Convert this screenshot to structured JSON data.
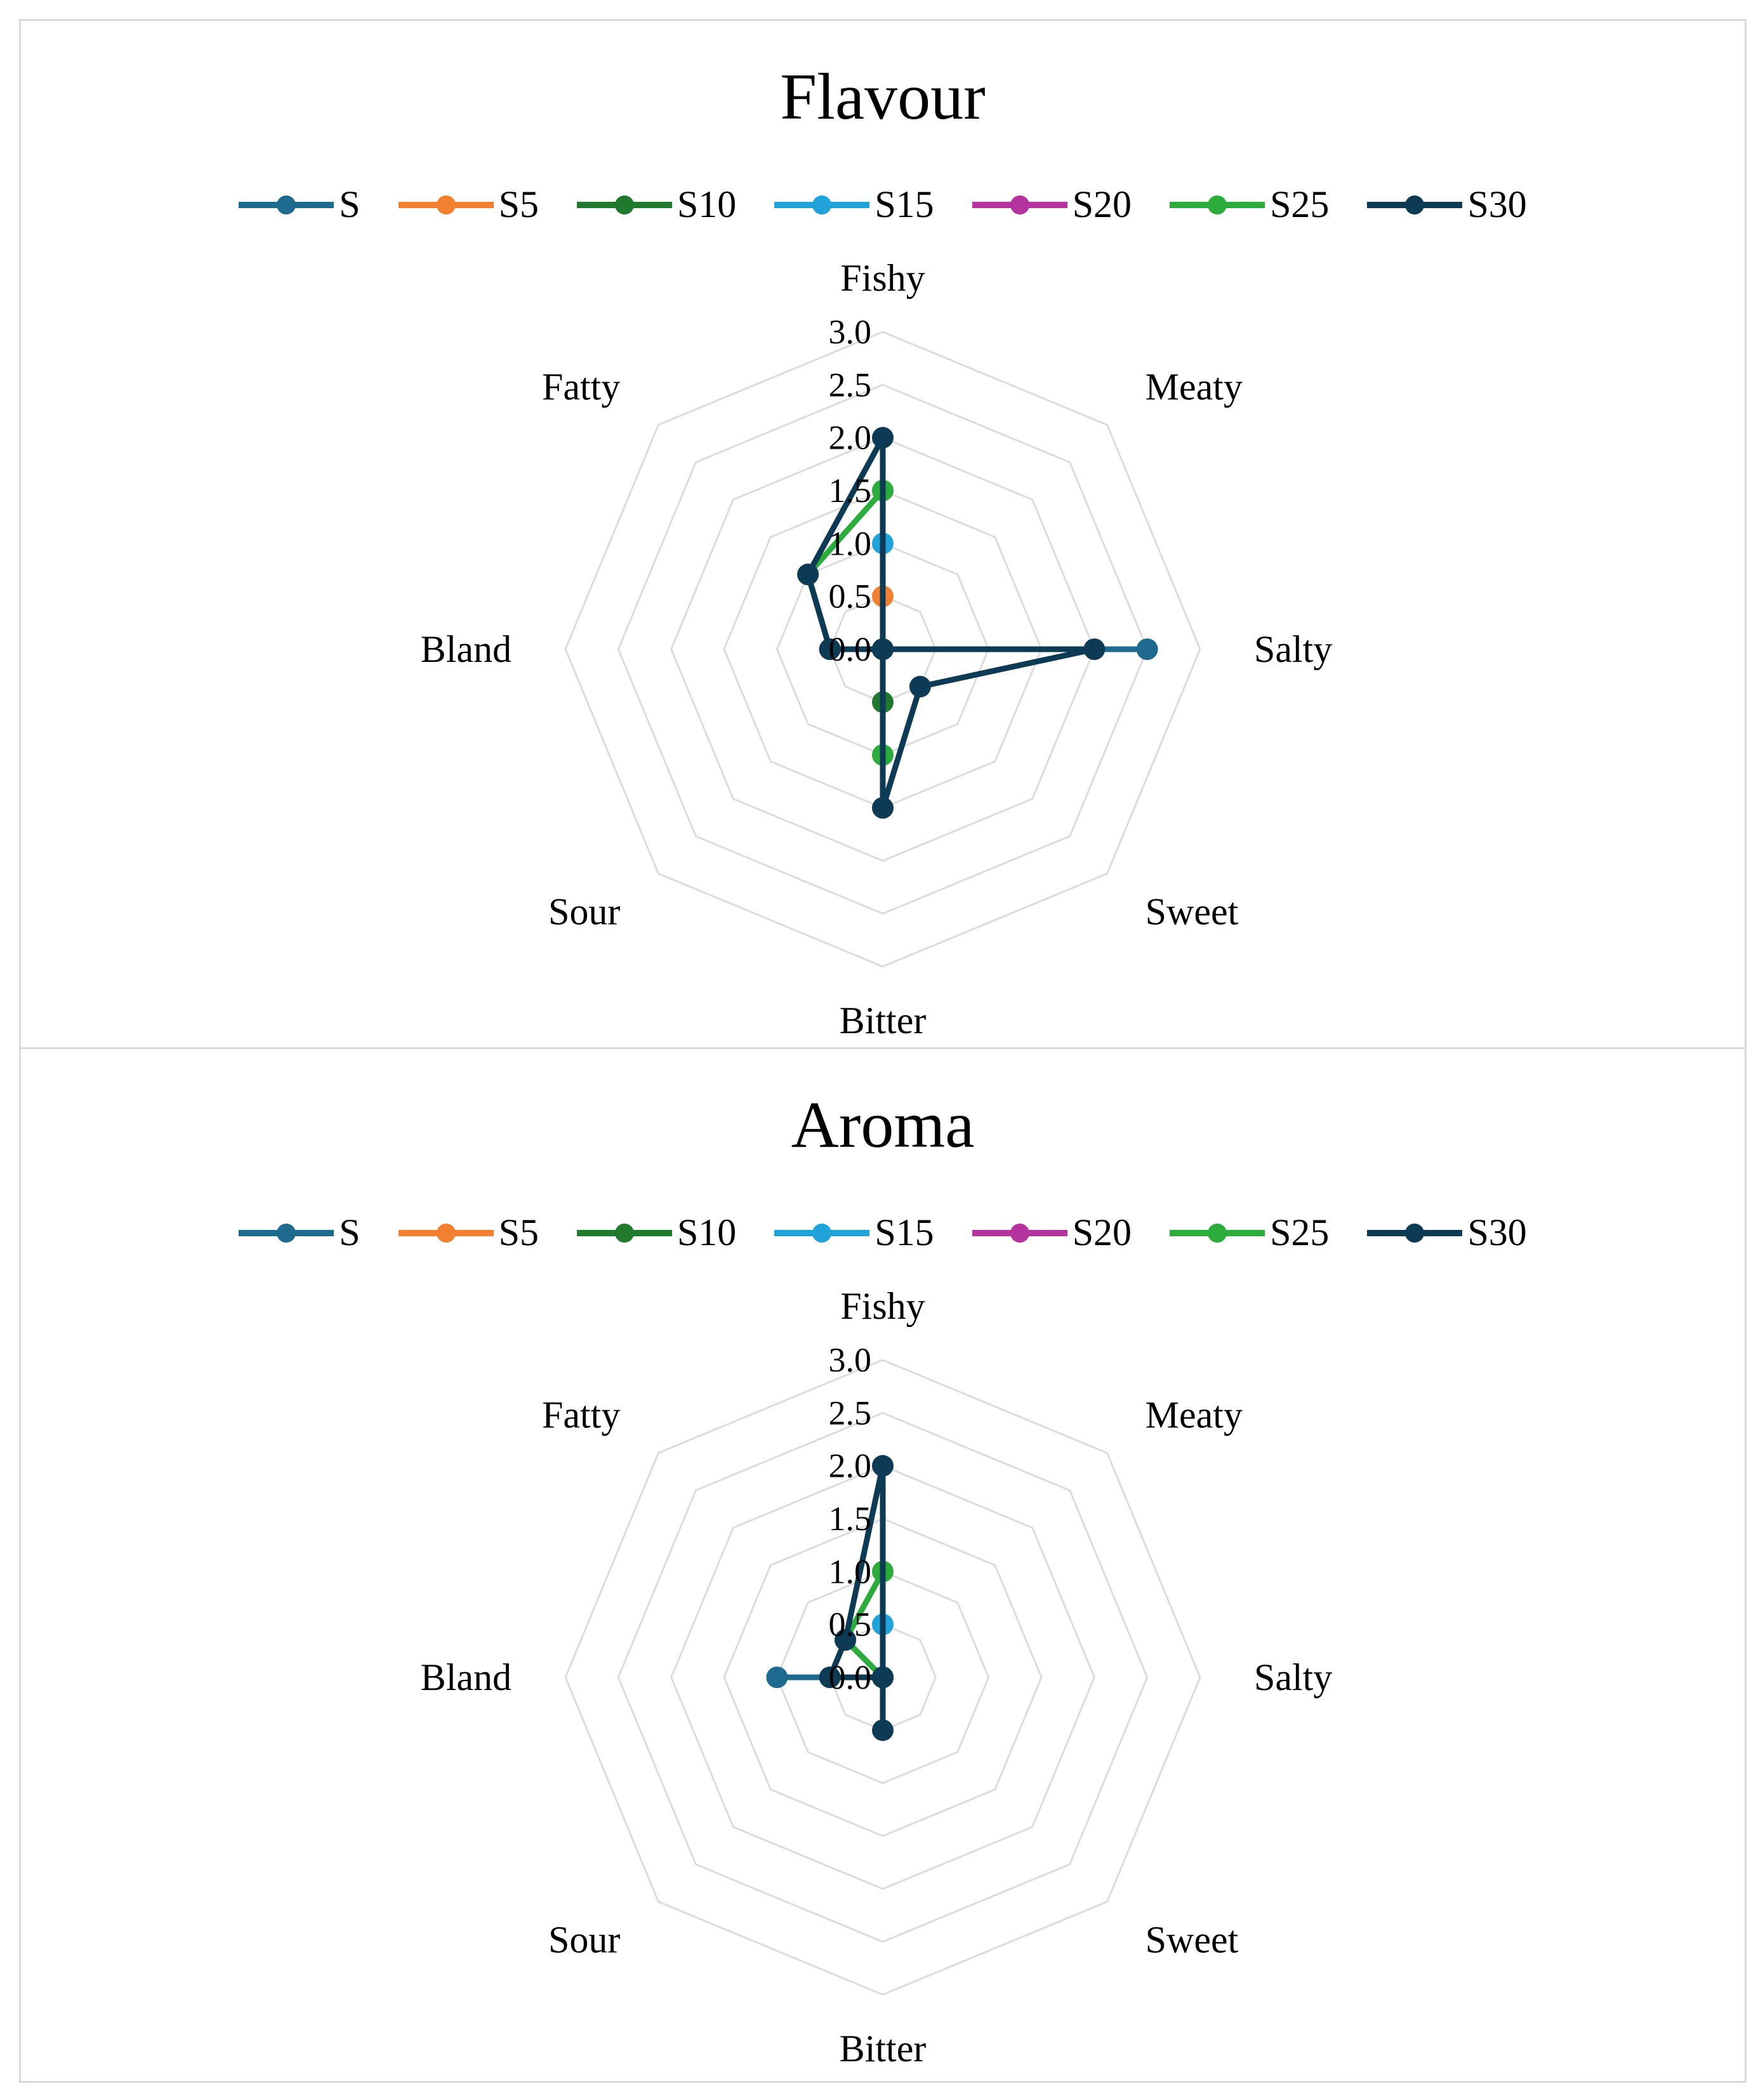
{
  "chart_data": [
    {
      "type": "radar",
      "title": "Flavour",
      "categories": [
        "Fishy",
        "Meaty",
        "Salty",
        "Sweet",
        "Bitter",
        "Sour",
        "Bland",
        "Fatty"
      ],
      "ticks": [
        "0.0",
        "0.5",
        "1.0",
        "1.5",
        "2.0",
        "2.5",
        "3.0"
      ],
      "rlim": [
        0,
        3
      ],
      "legend_position": "top",
      "series": [
        {
          "name": "S",
          "color": "#1f6b8f",
          "values": [
            0,
            0,
            2.5,
            0,
            0,
            0,
            0,
            0
          ]
        },
        {
          "name": "S5",
          "color": "#f28030",
          "values": [
            0.5,
            0,
            0,
            0,
            0,
            0,
            0,
            0
          ]
        },
        {
          "name": "S10",
          "color": "#1f7a2e",
          "values": [
            0,
            0,
            0,
            0,
            0.5,
            0,
            0,
            0
          ]
        },
        {
          "name": "S15",
          "color": "#1fa3d9",
          "values": [
            1.0,
            0,
            0,
            0,
            0,
            0,
            0.5,
            0
          ]
        },
        {
          "name": "S20",
          "color": "#b5339e",
          "values": [
            0,
            0,
            0,
            0,
            0,
            0,
            0,
            0
          ]
        },
        {
          "name": "S25",
          "color": "#2cac3a",
          "values": [
            1.5,
            0,
            0,
            0,
            1.0,
            0,
            0.5,
            1.0
          ]
        },
        {
          "name": "S30",
          "color": "#0d3b55",
          "values": [
            2.0,
            0,
            2.0,
            0.5,
            1.5,
            0,
            0.5,
            1.0
          ]
        }
      ]
    },
    {
      "type": "radar",
      "title": "Aroma",
      "categories": [
        "Fishy",
        "Meaty",
        "Salty",
        "Sweet",
        "Bitter",
        "Sour",
        "Bland",
        "Fatty"
      ],
      "ticks": [
        "0.0",
        "0.5",
        "1.0",
        "1.5",
        "2.0",
        "2.5",
        "3.0"
      ],
      "rlim": [
        0,
        3
      ],
      "legend_position": "top",
      "series": [
        {
          "name": "S",
          "color": "#1f6b8f",
          "values": [
            0,
            0,
            0,
            0,
            0,
            0,
            1.0,
            0
          ]
        },
        {
          "name": "S5",
          "color": "#f28030",
          "values": [
            0,
            0,
            0,
            0,
            0,
            0,
            0,
            0
          ]
        },
        {
          "name": "S10",
          "color": "#1f7a2e",
          "values": [
            0,
            0,
            0,
            0,
            0,
            0,
            0,
            0.5
          ]
        },
        {
          "name": "S15",
          "color": "#1fa3d9",
          "values": [
            0.5,
            0,
            0,
            0,
            0,
            0,
            0,
            0
          ]
        },
        {
          "name": "S20",
          "color": "#b5339e",
          "values": [
            0,
            0,
            0,
            0,
            0,
            0,
            0,
            0
          ]
        },
        {
          "name": "S25",
          "color": "#2cac3a",
          "values": [
            1.0,
            0,
            0,
            0,
            0,
            0,
            0,
            0.5
          ]
        },
        {
          "name": "S30",
          "color": "#0d3b55",
          "values": [
            2.0,
            0,
            0,
            0,
            0.5,
            0,
            0.5,
            0.5
          ]
        }
      ]
    }
  ]
}
